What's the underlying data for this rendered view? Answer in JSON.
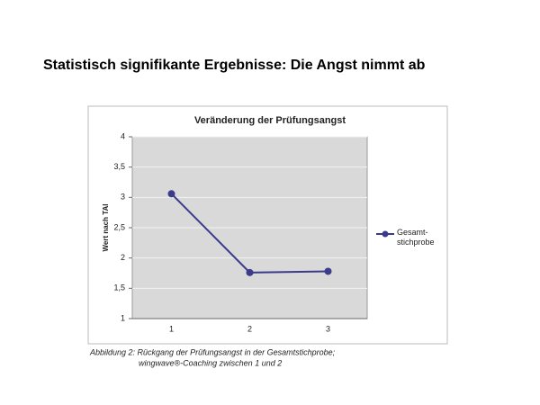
{
  "title": "Statistisch signifikante Ergebnisse: Die Angst nimmt ab",
  "caption": [
    "Abbildung 2: Rückgang der Prüfungsangst in der Gesamtstichprobe;",
    "wingwave®-Coaching zwischen 1 und 2"
  ],
  "chart_data": {
    "type": "line",
    "title": "Veränderung der Prüfungsangst",
    "y_label": "Wert nach TAI",
    "categories": [
      "1",
      "2",
      "3"
    ],
    "series": [
      {
        "name": "Gesamt-\nstichprobe",
        "color": "#3b3b8c",
        "values": [
          3.06,
          1.76,
          1.78
        ]
      }
    ],
    "ylim": [
      1,
      4
    ],
    "yticks": [
      1,
      {
        "value": 1.5,
        "label": "1,5"
      },
      2,
      {
        "value": 2.5,
        "label": "2,5"
      },
      3,
      {
        "value": 3.5,
        "label": "3,5"
      },
      4
    ],
    "grid": true,
    "legend": "right"
  }
}
